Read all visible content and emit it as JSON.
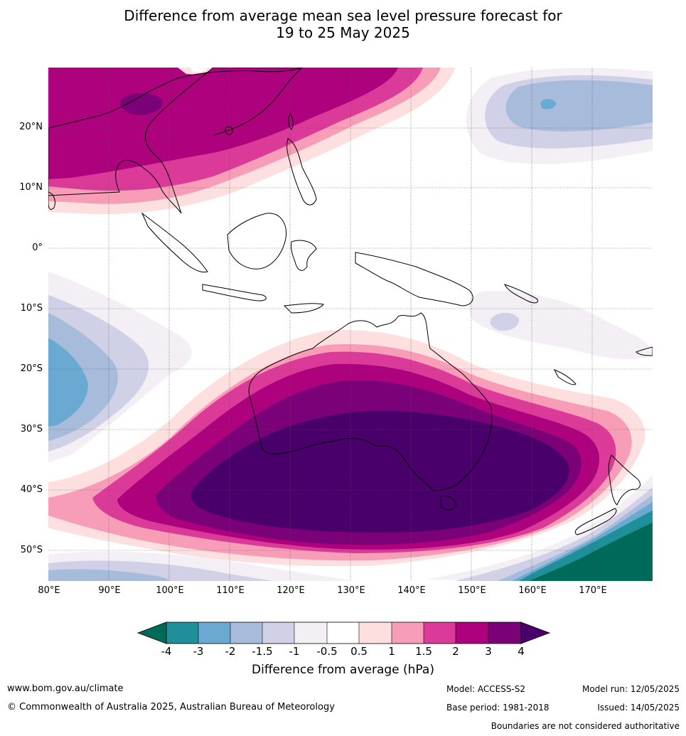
{
  "title": {
    "line1": "Difference from average mean sea level pressure forecast for",
    "line2": "19 to 25 May 2025"
  },
  "map": {
    "lon_range": [
      80,
      180
    ],
    "lat_range": [
      -55,
      30
    ],
    "lat_ticks": [
      {
        "value": 20,
        "label": "20°N"
      },
      {
        "value": 10,
        "label": "10°N"
      },
      {
        "value": 0,
        "label": "0°"
      },
      {
        "value": -10,
        "label": "10°S"
      },
      {
        "value": -20,
        "label": "20°S"
      },
      {
        "value": -30,
        "label": "30°S"
      },
      {
        "value": -40,
        "label": "40°S"
      },
      {
        "value": -50,
        "label": "50°S"
      }
    ],
    "lon_ticks": [
      {
        "value": 80,
        "label": "80°E"
      },
      {
        "value": 90,
        "label": "90°E"
      },
      {
        "value": 100,
        "label": "100°E"
      },
      {
        "value": 110,
        "label": "110°E"
      },
      {
        "value": 120,
        "label": "120°E"
      },
      {
        "value": 130,
        "label": "130°E"
      },
      {
        "value": 140,
        "label": "140°E"
      },
      {
        "value": 150,
        "label": "150°E"
      },
      {
        "value": 160,
        "label": "160°E"
      },
      {
        "value": 170,
        "label": "170°E"
      }
    ]
  },
  "colorbar": {
    "title": "Difference from average (hPa)",
    "tick_labels": [
      "-4",
      "-3",
      "-2",
      "-1.5",
      "-1",
      "-0.5",
      "0.5",
      "1",
      "1.5",
      "2",
      "3",
      "4"
    ],
    "colors": [
      "#006a5a",
      "#1f9099",
      "#6aaad2",
      "#a6bcda",
      "#d0d0e6",
      "#f3eff5",
      "#ffffff",
      "#fddfdf",
      "#f89db8",
      "#db3a98",
      "#ae017e",
      "#7a0177",
      "#49006a"
    ]
  },
  "footer": {
    "website": "www.bom.gov.au/climate",
    "copyright": "© Commonwealth of Australia 2025, Australian Bureau of Meteorology",
    "model": "Model: ACCESS-S2",
    "base_period": "Base period: 1981-2018",
    "model_run": "Model run: 12/05/2025",
    "issued": "Issued: 14/05/2025",
    "disclaimer": "Boundaries are not considered authoritative"
  }
}
